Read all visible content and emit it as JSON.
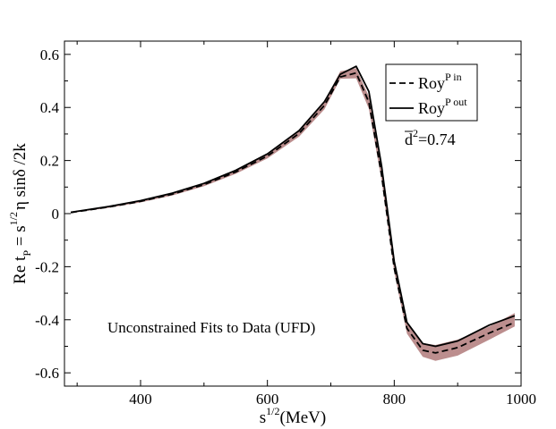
{
  "chart_data": {
    "type": "line",
    "xlabel": {
      "base": "s",
      "sup": "1/2",
      "rest": "(MeV)"
    },
    "ylabel": {
      "prefix": "Re t",
      "sub": "P",
      "eq": " = s",
      "sup": "1/2",
      "rest": "η sinδ /2k"
    },
    "xlim": [
      280,
      1000
    ],
    "ylim": [
      -0.65,
      0.65
    ],
    "x_ticks": [
      400,
      600,
      800,
      1000
    ],
    "y_ticks": [
      -0.6,
      -0.4,
      -0.2,
      0,
      0.2,
      0.4,
      0.6
    ],
    "x_tick_labels": [
      "400",
      "600",
      "800",
      "1000"
    ],
    "y_tick_labels": [
      "-0.6",
      "-0.4",
      "-0.2",
      "0",
      "0.2",
      "0.4",
      "0.6"
    ],
    "grid": false,
    "legend_position": "top-right",
    "annotations": {
      "fit_label": "Unconstrained Fits to Data (UFD)",
      "d2_prefix": "d",
      "d2_sup": "2",
      "d2_value": "=0.74"
    },
    "band": {
      "color": "#b07a7a",
      "x": [
        290,
        350,
        400,
        450,
        500,
        550,
        600,
        650,
        690,
        715,
        740,
        760,
        780,
        800,
        820,
        845,
        865,
        900,
        950,
        990
      ],
      "lower": [
        0.002,
        0.022,
        0.042,
        0.068,
        0.103,
        0.15,
        0.208,
        0.29,
        0.393,
        0.508,
        0.51,
        0.395,
        0.125,
        -0.22,
        -0.452,
        -0.54,
        -0.555,
        -0.535,
        -0.475,
        -0.425
      ],
      "upper": [
        0.006,
        0.028,
        0.05,
        0.078,
        0.115,
        0.164,
        0.226,
        0.315,
        0.424,
        0.536,
        0.548,
        0.442,
        0.162,
        -0.185,
        -0.408,
        -0.488,
        -0.495,
        -0.475,
        -0.425,
        -0.375
      ]
    },
    "series": [
      {
        "name": "Roy^P in",
        "legend_base": "Roy",
        "legend_sup": "P in",
        "style": "dashed",
        "color": "#000000",
        "x": [
          290,
          350,
          400,
          450,
          500,
          550,
          600,
          650,
          690,
          715,
          740,
          760,
          780,
          800,
          820,
          845,
          865,
          900,
          950,
          990
        ],
        "y": [
          0.004,
          0.025,
          0.046,
          0.073,
          0.109,
          0.157,
          0.217,
          0.302,
          0.408,
          0.515,
          0.53,
          0.42,
          0.145,
          -0.205,
          -0.432,
          -0.515,
          -0.525,
          -0.505,
          -0.45,
          -0.41
        ]
      },
      {
        "name": "Roy^P out",
        "legend_base": "Roy",
        "legend_sup": "P out",
        "style": "solid",
        "color": "#000000",
        "x": [
          290,
          350,
          400,
          450,
          500,
          550,
          600,
          650,
          690,
          715,
          740,
          760,
          780,
          800,
          820,
          845,
          865,
          900,
          950,
          990
        ],
        "y": [
          0.005,
          0.027,
          0.049,
          0.077,
          0.114,
          0.163,
          0.225,
          0.313,
          0.422,
          0.525,
          0.555,
          0.46,
          0.18,
          -0.18,
          -0.41,
          -0.49,
          -0.5,
          -0.48,
          -0.42,
          -0.385
        ]
      }
    ]
  }
}
